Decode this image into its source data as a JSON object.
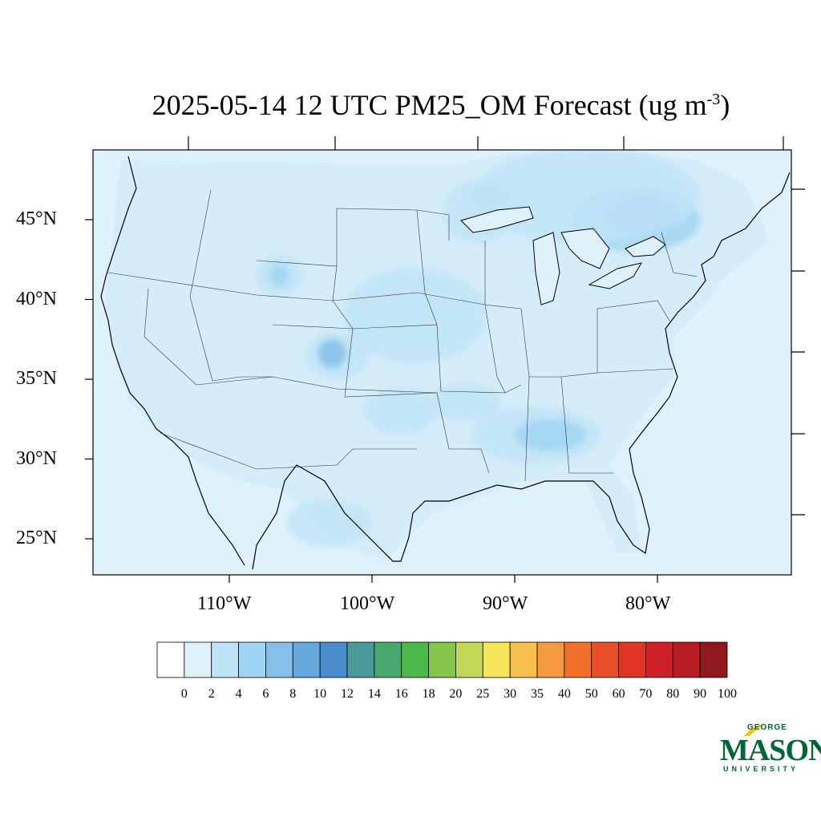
{
  "title": {
    "main": "2025-05-14 12 UTC PM25_OM Forecast (ug m",
    "sup": "-3",
    "close": ")"
  },
  "latitude_labels": [
    "45°N",
    "40°N",
    "35°N",
    "30°N",
    "25°N"
  ],
  "longitude_labels": [
    "110°W",
    "100°W",
    "90°W",
    "80°W"
  ],
  "colorbar": {
    "levels": [
      "0",
      "2",
      "4",
      "6",
      "8",
      "10",
      "12",
      "14",
      "16",
      "18",
      "20",
      "25",
      "30",
      "35",
      "40",
      "50",
      "60",
      "70",
      "80",
      "90",
      "100"
    ],
    "colors": [
      "#ffffff",
      "#dff2fb",
      "#bfe4f7",
      "#9fd5f2",
      "#84c0e8",
      "#66a9dc",
      "#4a8bcc",
      "#4a9a9a",
      "#49a86e",
      "#4bb84a",
      "#86c54b",
      "#c4d655",
      "#f7e65a",
      "#f7bf4c",
      "#f59a3e",
      "#f26f2c",
      "#e9502a",
      "#e03427",
      "#cf2128",
      "#b71c24",
      "#8f1a1e"
    ]
  },
  "map": {
    "ocean_color": "#dff2fb",
    "plumes": [
      {
        "level": 3,
        "lon": -81.5,
        "lat": 45.0,
        "rx": 4.5,
        "ry": 2.0
      },
      {
        "level": 4,
        "lon": -81.0,
        "lat": 45.2,
        "rx": 2.4,
        "ry": 1.2
      },
      {
        "level": 2,
        "lon": -85.0,
        "lat": 46.5,
        "rx": 8.0,
        "ry": 3.0
      },
      {
        "level": 2,
        "lon": -102.5,
        "lat": 36.5,
        "rx": 2.2,
        "ry": 1.5
      },
      {
        "level": 4,
        "lon": -102.8,
        "lat": 36.6,
        "rx": 1.0,
        "ry": 0.9
      },
      {
        "level": 2,
        "lon": -106.5,
        "lat": 41.5,
        "rx": 1.6,
        "ry": 1.3
      },
      {
        "level": 3,
        "lon": -106.5,
        "lat": 41.5,
        "rx": 0.7,
        "ry": 0.7
      },
      {
        "level": 2,
        "lon": -88.5,
        "lat": 31.5,
        "rx": 4.5,
        "ry": 1.8
      },
      {
        "level": 3,
        "lon": -87.5,
        "lat": 31.5,
        "rx": 2.5,
        "ry": 1.0
      },
      {
        "level": 2,
        "lon": -93.5,
        "lat": 33.5,
        "rx": 2.5,
        "ry": 1.2
      },
      {
        "level": 2,
        "lon": -103.0,
        "lat": 26.0,
        "rx": 3.0,
        "ry": 1.5
      },
      {
        "level": 2,
        "lon": -98.0,
        "lat": 33.0,
        "rx": 2.5,
        "ry": 1.5
      },
      {
        "level": 2,
        "lon": -97.0,
        "lat": 39.0,
        "rx": 5.0,
        "ry": 3.0
      },
      {
        "level": 2,
        "lon": -92.5,
        "lat": 45.5,
        "rx": 2.5,
        "ry": 2.0
      }
    ]
  },
  "logo": {
    "line1": "GEORGE",
    "line2": "MASON",
    "line3": "UNIVERSITY"
  }
}
